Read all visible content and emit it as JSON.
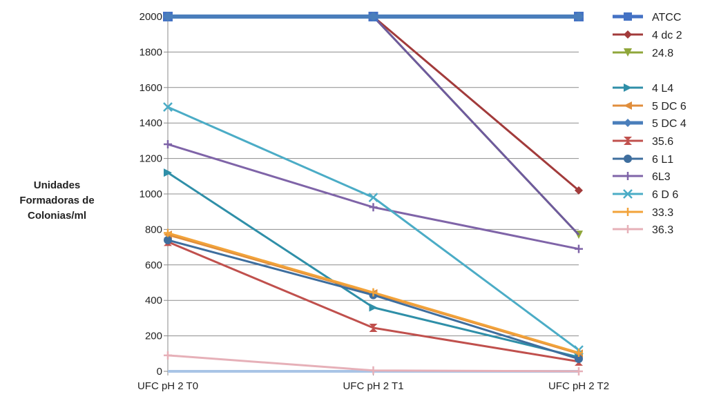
{
  "chart_data": {
    "type": "line",
    "title": "",
    "xlabel": "",
    "ylabel_lines": [
      "Unidades",
      "Formadoras de",
      "Colonias/ml"
    ],
    "categories": [
      "UFC pH 2 T0",
      "UFC pH 2 T1",
      "UFC pH 2 T2"
    ],
    "ylim": [
      0,
      2000
    ],
    "yticks": [
      0,
      200,
      400,
      600,
      800,
      1000,
      1200,
      1400,
      1600,
      1800,
      2000
    ],
    "grid": true,
    "legend_position": "right",
    "series": [
      {
        "name": "ATCC",
        "values": [
          2000,
          2000,
          2000
        ],
        "color": "#4472C4",
        "marker": "square",
        "width": 5
      },
      {
        "name": "4 dc 2",
        "values": [
          2000,
          2000,
          1020
        ],
        "color": "#A23B3B",
        "marker": "diamond",
        "width": 3
      },
      {
        "name": "24.8",
        "values": [
          2000,
          2000,
          770
        ],
        "color": "#8FA63A",
        "marker": "triangle-down",
        "width": 3
      },
      {
        "name": "",
        "values": [
          2000,
          2000,
          770
        ],
        "color": "#6E5A9E",
        "marker": "none",
        "width": 3,
        "legend": false
      },
      {
        "name": "4 L4",
        "values": [
          1120,
          360,
          80
        ],
        "color": "#2F8FA8",
        "marker": "triangle-right",
        "width": 3
      },
      {
        "name": "5 DC 6",
        "values": [
          770,
          440,
          100
        ],
        "color": "#E08E3C",
        "marker": "triangle-left",
        "width": 3
      },
      {
        "name": "5 DC 4",
        "values": [
          2000,
          2000,
          2000
        ],
        "color": "#4A7EBB",
        "marker": "diamond",
        "width": 6
      },
      {
        "name": "35.6",
        "values": [
          730,
          245,
          55
        ],
        "color": "#C0504D",
        "marker": "hourglass",
        "width": 3
      },
      {
        "name": "6 L1",
        "values": [
          740,
          430,
          70
        ],
        "color": "#3E6E9E",
        "marker": "circle",
        "width": 3
      },
      {
        "name": "6L3",
        "values": [
          1280,
          925,
          690
        ],
        "color": "#7F64A8",
        "marker": "plus",
        "width": 3
      },
      {
        "name": "6 D 6",
        "values": [
          1490,
          980,
          120
        ],
        "color": "#4BACC6",
        "marker": "x",
        "width": 3
      },
      {
        "name": "33.3",
        "values": [
          780,
          445,
          105
        ],
        "color": "#F2A33A",
        "marker": "plus",
        "width": 3
      },
      {
        "name": "36.3",
        "values": [
          90,
          5,
          0
        ],
        "color": "#E6B0B8",
        "marker": "plus",
        "width": 3
      }
    ],
    "extra_zero_line_color": "#A9C4E6"
  }
}
